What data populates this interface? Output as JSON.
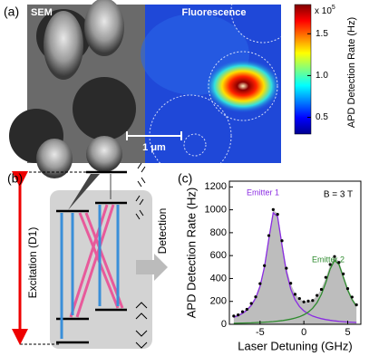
{
  "panel_a": {
    "label": "(a)",
    "sem_label": "SEM",
    "fluorescence_label": "Fluorescence",
    "scale_bar": "1 μm",
    "colorbar": {
      "title": "APD Detection Rate (Hz)",
      "multiplier": "x 10",
      "exponent": "5",
      "lim": [
        0.3,
        1.85
      ],
      "ticks": [
        0.5,
        {
          "value": 1,
          "label": "1.0"
        },
        1.5
      ]
    }
  },
  "panel_b": {
    "label": "(b)",
    "excitation": "Excitation (D1)",
    "detection": "Detection"
  },
  "chart_data": {
    "type": "line",
    "label": "(c)",
    "annotation": "B = 3 T",
    "x_label": "Laser Detuning (GHz)",
    "y_label": "APD Detection Rate (Hz)",
    "x": [
      -8,
      -7.5,
      -7,
      -6.5,
      -6,
      -5.5,
      -5,
      -4.5,
      -4,
      -3.5,
      -3,
      -2.5,
      -2,
      -1.5,
      -1,
      -0.5,
      0,
      0.5,
      1,
      1.5,
      2,
      2.5,
      3,
      3.5,
      4,
      4.5,
      5,
      5.5,
      6
    ],
    "series": [
      {
        "name": "Emitter 1",
        "color": "#8a2be2",
        "values": [
          61,
          75,
          95,
          123,
          165,
          229,
          332,
          500,
          746,
          973,
          941,
          692,
          460,
          308,
          214,
          155,
          117,
          91,
          72,
          59,
          49,
          41,
          35,
          30,
          26,
          23,
          20,
          18,
          16
        ]
      },
      {
        "name": "Emitter 2",
        "color": "#2e8b2e",
        "values": [
          9,
          10,
          11,
          12,
          13,
          15,
          17,
          19,
          21,
          24,
          28,
          32,
          38,
          45,
          54,
          66,
          83,
          106,
          140,
          189,
          262,
          364,
          483,
          558,
          523,
          412,
          299,
          215,
          157
        ]
      }
    ],
    "fill_color": "#bdbdbd",
    "points": [
      72,
      82,
      110,
      131,
      182,
      240,
      355,
      512,
      775,
      1002,
      960,
      730,
      490,
      358,
      262,
      225,
      196,
      203,
      208,
      252,
      305,
      410,
      522,
      592,
      540,
      440,
      312,
      238,
      170
    ],
    "points_color": "#000000",
    "xlim": [
      -8.5,
      6.5
    ],
    "ylim": [
      0,
      1250
    ],
    "xticks": [
      -5,
      0,
      5
    ],
    "yticks": [
      0,
      200,
      400,
      600,
      800,
      1000,
      1200
    ]
  }
}
